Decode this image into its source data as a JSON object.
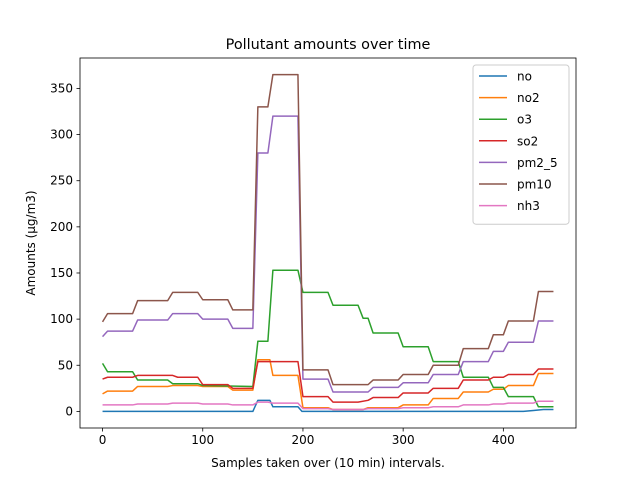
{
  "chart_data": {
    "type": "line",
    "title": "Pollutant amounts over time",
    "xlabel": "Samples taken over (10 min) intervals.",
    "ylabel": "Amounts (µg/m3)",
    "xlim": [
      -22.5,
      472.5
    ],
    "ylim": [
      -18,
      383
    ],
    "xticks": [
      0,
      100,
      200,
      300,
      400
    ],
    "yticks": [
      0,
      50,
      100,
      150,
      200,
      250,
      300,
      350
    ],
    "grid": false,
    "legend": "top-right",
    "series": [
      {
        "name": "no",
        "color": "#1f77b4",
        "points": [
          [
            0,
            0
          ],
          [
            150,
            0
          ],
          [
            155,
            12
          ],
          [
            167,
            12
          ],
          [
            170,
            5
          ],
          [
            195,
            5
          ],
          [
            199,
            0
          ],
          [
            420,
            0
          ],
          [
            430,
            1
          ],
          [
            440,
            2
          ],
          [
            450,
            2
          ]
        ]
      },
      {
        "name": "no2",
        "color": "#ff7f0e",
        "points": [
          [
            0,
            19
          ],
          [
            5,
            22
          ],
          [
            30,
            22
          ],
          [
            35,
            27
          ],
          [
            65,
            27
          ],
          [
            70,
            28
          ],
          [
            95,
            28
          ],
          [
            100,
            27
          ],
          [
            125,
            27
          ],
          [
            130,
            23
          ],
          [
            150,
            23
          ],
          [
            155,
            56
          ],
          [
            167,
            56
          ],
          [
            170,
            39
          ],
          [
            195,
            39
          ],
          [
            200,
            4
          ],
          [
            225,
            4
          ],
          [
            230,
            2
          ],
          [
            260,
            2
          ],
          [
            265,
            4
          ],
          [
            295,
            4
          ],
          [
            300,
            7
          ],
          [
            325,
            7
          ],
          [
            330,
            14
          ],
          [
            355,
            14
          ],
          [
            360,
            21
          ],
          [
            385,
            21
          ],
          [
            390,
            24
          ],
          [
            400,
            24
          ],
          [
            405,
            28
          ],
          [
            430,
            28
          ],
          [
            435,
            41
          ],
          [
            450,
            41
          ]
        ]
      },
      {
        "name": "o3",
        "color": "#2ca02c",
        "points": [
          [
            0,
            52
          ],
          [
            5,
            43
          ],
          [
            30,
            43
          ],
          [
            35,
            34
          ],
          [
            65,
            34
          ],
          [
            70,
            30
          ],
          [
            95,
            30
          ],
          [
            100,
            28
          ],
          [
            150,
            27
          ],
          [
            155,
            76
          ],
          [
            165,
            76
          ],
          [
            170,
            153
          ],
          [
            195,
            153
          ],
          [
            200,
            129
          ],
          [
            225,
            129
          ],
          [
            230,
            115
          ],
          [
            255,
            115
          ],
          [
            260,
            101
          ],
          [
            265,
            101
          ],
          [
            270,
            85
          ],
          [
            295,
            85
          ],
          [
            300,
            70
          ],
          [
            325,
            70
          ],
          [
            330,
            54
          ],
          [
            355,
            54
          ],
          [
            360,
            37
          ],
          [
            385,
            37
          ],
          [
            390,
            26
          ],
          [
            400,
            26
          ],
          [
            405,
            16
          ],
          [
            430,
            16
          ],
          [
            435,
            5
          ],
          [
            450,
            5
          ]
        ]
      },
      {
        "name": "so2",
        "color": "#d62728",
        "points": [
          [
            0,
            35
          ],
          [
            5,
            37
          ],
          [
            30,
            37
          ],
          [
            35,
            39
          ],
          [
            70,
            39
          ],
          [
            75,
            37
          ],
          [
            95,
            37
          ],
          [
            100,
            29
          ],
          [
            125,
            29
          ],
          [
            130,
            25
          ],
          [
            150,
            25
          ],
          [
            155,
            54
          ],
          [
            195,
            54
          ],
          [
            200,
            16
          ],
          [
            225,
            16
          ],
          [
            230,
            10
          ],
          [
            255,
            10
          ],
          [
            265,
            12
          ],
          [
            270,
            15
          ],
          [
            295,
            15
          ],
          [
            300,
            20
          ],
          [
            325,
            20
          ],
          [
            330,
            25
          ],
          [
            355,
            25
          ],
          [
            360,
            34
          ],
          [
            385,
            34
          ],
          [
            390,
            37
          ],
          [
            400,
            37
          ],
          [
            405,
            40
          ],
          [
            430,
            40
          ],
          [
            435,
            46
          ],
          [
            450,
            46
          ]
        ]
      },
      {
        "name": "pm2_5",
        "color": "#9467bd",
        "points": [
          [
            0,
            81
          ],
          [
            5,
            87
          ],
          [
            30,
            87
          ],
          [
            35,
            99
          ],
          [
            65,
            99
          ],
          [
            70,
            106
          ],
          [
            95,
            106
          ],
          [
            100,
            100
          ],
          [
            125,
            100
          ],
          [
            130,
            90
          ],
          [
            150,
            90
          ],
          [
            155,
            280
          ],
          [
            165,
            280
          ],
          [
            170,
            320
          ],
          [
            195,
            320
          ],
          [
            200,
            35
          ],
          [
            225,
            35
          ],
          [
            230,
            21
          ],
          [
            260,
            21
          ],
          [
            265,
            21
          ],
          [
            270,
            26
          ],
          [
            295,
            26
          ],
          [
            300,
            31
          ],
          [
            325,
            31
          ],
          [
            330,
            40
          ],
          [
            355,
            40
          ],
          [
            360,
            54
          ],
          [
            385,
            54
          ],
          [
            390,
            65
          ],
          [
            400,
            65
          ],
          [
            405,
            75
          ],
          [
            430,
            75
          ],
          [
            435,
            98
          ],
          [
            450,
            98
          ]
        ]
      },
      {
        "name": "pm10",
        "color": "#8c564b",
        "points": [
          [
            0,
            97
          ],
          [
            5,
            106
          ],
          [
            30,
            106
          ],
          [
            35,
            120
          ],
          [
            65,
            120
          ],
          [
            70,
            129
          ],
          [
            95,
            129
          ],
          [
            100,
            121
          ],
          [
            125,
            121
          ],
          [
            130,
            110
          ],
          [
            150,
            110
          ],
          [
            155,
            330
          ],
          [
            165,
            330
          ],
          [
            170,
            365
          ],
          [
            195,
            365
          ],
          [
            200,
            45
          ],
          [
            225,
            45
          ],
          [
            230,
            29
          ],
          [
            260,
            29
          ],
          [
            265,
            29
          ],
          [
            270,
            34
          ],
          [
            295,
            34
          ],
          [
            300,
            40
          ],
          [
            325,
            40
          ],
          [
            330,
            50
          ],
          [
            355,
            50
          ],
          [
            360,
            68
          ],
          [
            385,
            68
          ],
          [
            390,
            83
          ],
          [
            400,
            83
          ],
          [
            405,
            98
          ],
          [
            430,
            98
          ],
          [
            435,
            130
          ],
          [
            450,
            130
          ]
        ]
      },
      {
        "name": "nh3",
        "color": "#e377c2",
        "points": [
          [
            0,
            7
          ],
          [
            5,
            7
          ],
          [
            30,
            7
          ],
          [
            35,
            8
          ],
          [
            65,
            8
          ],
          [
            70,
            9
          ],
          [
            95,
            9
          ],
          [
            100,
            8
          ],
          [
            125,
            8
          ],
          [
            130,
            7
          ],
          [
            150,
            7
          ],
          [
            155,
            10
          ],
          [
            165,
            10
          ],
          [
            170,
            9
          ],
          [
            195,
            9
          ],
          [
            200,
            3
          ],
          [
            225,
            3
          ],
          [
            230,
            2
          ],
          [
            260,
            2
          ],
          [
            265,
            3
          ],
          [
            295,
            3
          ],
          [
            300,
            4
          ],
          [
            325,
            4
          ],
          [
            330,
            5
          ],
          [
            355,
            5
          ],
          [
            360,
            7
          ],
          [
            385,
            7
          ],
          [
            390,
            8
          ],
          [
            400,
            8
          ],
          [
            405,
            9
          ],
          [
            430,
            9
          ],
          [
            435,
            11
          ],
          [
            450,
            11
          ]
        ]
      }
    ]
  }
}
